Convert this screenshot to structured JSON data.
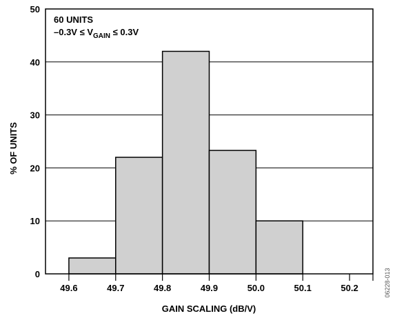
{
  "chart_data": {
    "type": "bar",
    "histogram": true,
    "categories": [
      "49.7",
      "49.8",
      "49.9",
      "50.0",
      "50.1",
      "50.2"
    ],
    "x_ticks": [
      "49.6",
      "49.7",
      "49.8",
      "49.9",
      "50.0",
      "50.1",
      "50.2"
    ],
    "values": [
      3,
      22,
      42,
      23.3,
      10,
      0
    ],
    "y_ticks": [
      "0",
      "10",
      "20",
      "30",
      "40",
      "50"
    ],
    "ylim": [
      0,
      50
    ],
    "xlabel": "GAIN SCALING (dB/V)",
    "ylabel": "% OF UNITS",
    "grid": true,
    "bar_color": "#d0d0d0",
    "annotations": {
      "line1": "60 UNITS",
      "line2_prefix": "–0.3V ≤ V",
      "line2_sub": "GAIN",
      "line2_suffix": " ≤ 0.3V"
    }
  },
  "figure_id": "06228-013"
}
